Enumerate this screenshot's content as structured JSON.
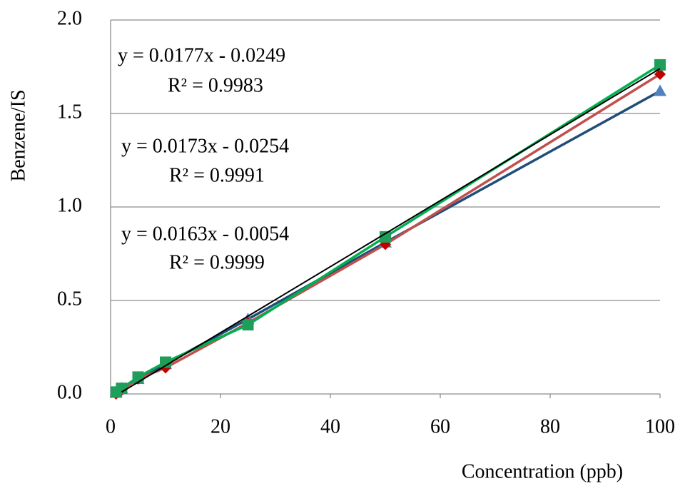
{
  "chart_data": {
    "type": "scatter",
    "x_label": "Concentration (ppb)",
    "y_label": "Benzene/IS",
    "x": [
      1,
      2,
      5,
      10,
      25,
      50,
      100
    ],
    "series": [
      {
        "color": "#1f4e79",
        "marker_color": "#4f81bd",
        "marker": "triangle",
        "values": [
          0.01,
          0.03,
          0.08,
          0.16,
          0.4,
          0.81,
          1.62
        ]
      },
      {
        "color": "#c0504d",
        "marker_color": "#c00000",
        "marker": "diamond",
        "values": [
          0.0,
          0.02,
          0.08,
          0.14,
          0.38,
          0.8,
          1.71
        ]
      },
      {
        "color": "#00b050",
        "marker_color": "#1f9e5a",
        "marker": "square",
        "values": [
          0.01,
          0.03,
          0.09,
          0.17,
          0.37,
          0.84,
          1.76
        ]
      }
    ],
    "trendline": {
      "color": "#000000",
      "x": [
        2,
        100
      ],
      "values": [
        0.01,
        1.74
      ]
    },
    "annotations": [
      [
        "y = 0.0177x - 0.0249",
        "R² = 0.9983"
      ],
      [
        "y = 0.0173x - 0.0254",
        "R² = 0.9991"
      ],
      [
        "y = 0.0163x - 0.0054",
        "R² = 0.9999"
      ]
    ],
    "xlim": [
      0,
      100
    ],
    "xticks": [
      0,
      20,
      40,
      60,
      80,
      100
    ],
    "ylim": [
      0,
      2
    ],
    "yticks": [
      {
        "value": 0,
        "label": "0.0"
      },
      0.5,
      {
        "value": 1,
        "label": "1.0"
      },
      1.5,
      {
        "value": 2,
        "label": "2.0"
      }
    ],
    "grid": true
  }
}
